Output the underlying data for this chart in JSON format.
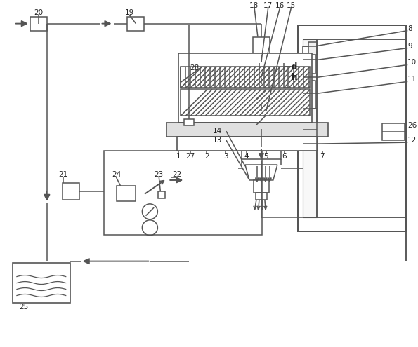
{
  "bg": "#ffffff",
  "lc": "#555555",
  "lw": 1.1,
  "fig_w": 5.95,
  "fig_h": 4.95,
  "dpi": 100
}
